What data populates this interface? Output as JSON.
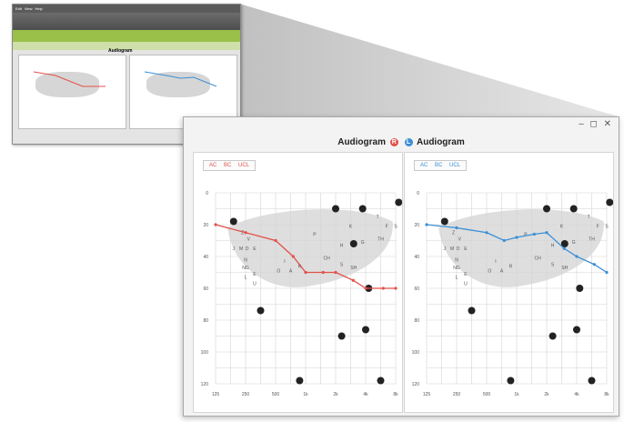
{
  "window": {
    "controls": "– ◻ ✕",
    "title_left": "Audiogram",
    "title_right": "Audiogram",
    "badge_left": "R",
    "badge_right": "L",
    "color_right_ear": "#e2514a",
    "color_left_ear": "#3a8fd6"
  },
  "legend": {
    "left": [
      "AC",
      "BC",
      "UCL"
    ],
    "right": [
      "AC",
      "BC",
      "UCL"
    ]
  },
  "axes": {
    "x_ticks": [
      "125",
      "250",
      "500",
      "1k",
      "2k",
      "4k",
      "8k"
    ],
    "y_ticks": [
      "0",
      "20",
      "40",
      "60",
      "80",
      "100",
      "120"
    ]
  },
  "speech_letters": [
    "Z",
    "V",
    "J",
    "M",
    "D",
    "E",
    "N",
    "NG",
    "E",
    "L",
    "U",
    "I",
    "O",
    "A",
    "R",
    "P",
    "H",
    "CH",
    "S",
    "SH",
    "K",
    "G",
    "T",
    "F",
    "TH",
    "S"
  ],
  "chart_data": [
    {
      "type": "line",
      "title": "Audiogram",
      "x": [
        "125",
        "250",
        "500",
        "750",
        "1k",
        "1.5k",
        "2k",
        "3k",
        "4k",
        "6k",
        "8k"
      ],
      "series": [
        {
          "name": "AC",
          "values": [
            20,
            25,
            30,
            40,
            50,
            50,
            50,
            55,
            60,
            60,
            60
          ]
        }
      ],
      "ylim": [
        0,
        120
      ],
      "y_inverted": true,
      "grid": true
    },
    {
      "type": "line",
      "title": "Audiogram",
      "x": [
        "125",
        "250",
        "500",
        "750",
        "1k",
        "1.5k",
        "2k",
        "3k",
        "4k",
        "6k",
        "8k"
      ],
      "series": [
        {
          "name": "AC",
          "values": [
            20,
            22,
            25,
            30,
            28,
            26,
            25,
            35,
            40,
            45,
            50
          ]
        }
      ],
      "ylim": [
        0,
        120
      ],
      "y_inverted": true,
      "grid": true
    }
  ],
  "thumbnail": {
    "menu": [
      "Edit",
      "View",
      "Help"
    ],
    "panel_title": "Audiogram"
  }
}
